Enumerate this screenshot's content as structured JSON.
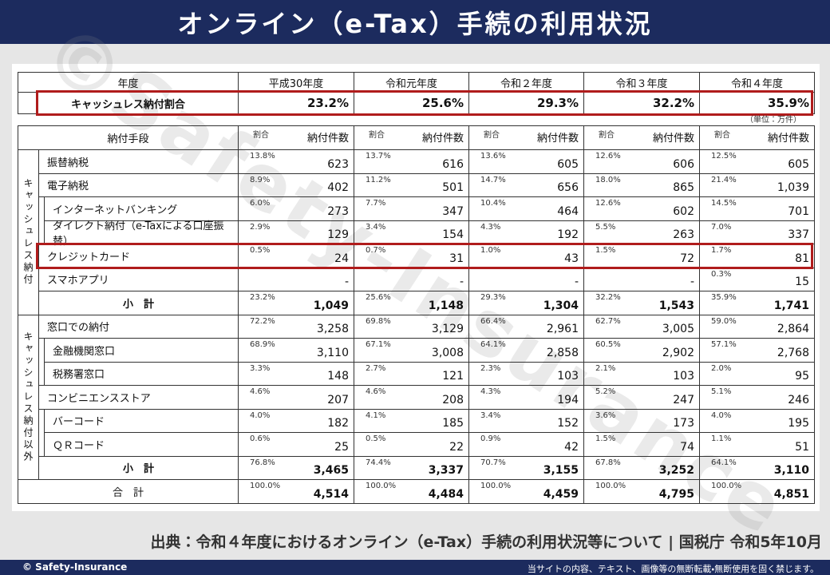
{
  "header": {
    "title": "オンライン（e-Tax）手続の利用状況"
  },
  "watermark": "©Safety-Insurance",
  "table1": {
    "header": [
      "年度",
      "平成30年度",
      "令和元年度",
      "令和２年度",
      "令和３年度",
      "令和４年度"
    ],
    "row": [
      "キャッシュレス納付割合",
      "23.2%",
      "25.6%",
      "29.3%",
      "32.2%",
      "35.9%"
    ]
  },
  "unit": "（単位：万件）",
  "table2": {
    "header": {
      "method": "納付手段",
      "share": "割合",
      "count": "納付件数"
    },
    "groups": [
      {
        "label": "キャッシュレス納付",
        "rows": [
          {
            "label": "振替納税",
            "cells": [
              {
                "share": "13.8%",
                "count": "623"
              },
              {
                "share": "13.7%",
                "count": "616"
              },
              {
                "share": "13.6%",
                "count": "605"
              },
              {
                "share": "12.6%",
                "count": "606"
              },
              {
                "share": "12.5%",
                "count": "605"
              }
            ]
          },
          {
            "label": "電子納税",
            "cells": [
              {
                "share": "8.9%",
                "count": "402"
              },
              {
                "share": "11.2%",
                "count": "501"
              },
              {
                "share": "14.7%",
                "count": "656"
              },
              {
                "share": "18.0%",
                "count": "865"
              },
              {
                "share": "21.4%",
                "count": "1,039"
              }
            ]
          },
          {
            "label": "インターネットバンキング",
            "cells": [
              {
                "share": "6.0%",
                "count": "273"
              },
              {
                "share": "7.7%",
                "count": "347"
              },
              {
                "share": "10.4%",
                "count": "464"
              },
              {
                "share": "12.6%",
                "count": "602"
              },
              {
                "share": "14.5%",
                "count": "701"
              }
            ]
          },
          {
            "label": "ダイレクト納付（e-Taxによる口座振替）",
            "cells": [
              {
                "share": "2.9%",
                "count": "129"
              },
              {
                "share": "3.4%",
                "count": "154"
              },
              {
                "share": "4.3%",
                "count": "192"
              },
              {
                "share": "5.5%",
                "count": "263"
              },
              {
                "share": "7.0%",
                "count": "337"
              }
            ]
          },
          {
            "label": "クレジットカード",
            "cells": [
              {
                "share": "0.5%",
                "count": "24"
              },
              {
                "share": "0.7%",
                "count": "31"
              },
              {
                "share": "1.0%",
                "count": "43"
              },
              {
                "share": "1.5%",
                "count": "72"
              },
              {
                "share": "1.7%",
                "count": "81"
              }
            ]
          },
          {
            "label": "スマホアプリ",
            "cells": [
              {
                "share": null,
                "count": "-"
              },
              {
                "share": null,
                "count": "-"
              },
              {
                "share": null,
                "count": "-"
              },
              {
                "share": null,
                "count": "-"
              },
              {
                "share": "0.3%",
                "count": "15"
              }
            ]
          },
          {
            "label": "小　計",
            "cells": [
              {
                "share": "23.2%",
                "count": "1,049"
              },
              {
                "share": "25.6%",
                "count": "1,148"
              },
              {
                "share": "29.3%",
                "count": "1,304"
              },
              {
                "share": "32.2%",
                "count": "1,543"
              },
              {
                "share": "35.9%",
                "count": "1,741"
              }
            ]
          }
        ]
      },
      {
        "label": "キャッシュレス納付以外",
        "rows": [
          {
            "label": "窓口での納付",
            "cells": [
              {
                "share": "72.2%",
                "count": "3,258"
              },
              {
                "share": "69.8%",
                "count": "3,129"
              },
              {
                "share": "66.4%",
                "count": "2,961"
              },
              {
                "share": "62.7%",
                "count": "3,005"
              },
              {
                "share": "59.0%",
                "count": "2,864"
              }
            ]
          },
          {
            "label": "金融機関窓口",
            "cells": [
              {
                "share": "68.9%",
                "count": "3,110"
              },
              {
                "share": "67.1%",
                "count": "3,008"
              },
              {
                "share": "64.1%",
                "count": "2,858"
              },
              {
                "share": "60.5%",
                "count": "2,902"
              },
              {
                "share": "57.1%",
                "count": "2,768"
              }
            ]
          },
          {
            "label": "税務署窓口",
            "cells": [
              {
                "share": "3.3%",
                "count": "148"
              },
              {
                "share": "2.7%",
                "count": "121"
              },
              {
                "share": "2.3%",
                "count": "103"
              },
              {
                "share": "2.1%",
                "count": "103"
              },
              {
                "share": "2.0%",
                "count": "95"
              }
            ]
          },
          {
            "label": "コンビニエンスストア",
            "cells": [
              {
                "share": "4.6%",
                "count": "207"
              },
              {
                "share": "4.6%",
                "count": "208"
              },
              {
                "share": "4.3%",
                "count": "194"
              },
              {
                "share": "5.2%",
                "count": "247"
              },
              {
                "share": "5.1%",
                "count": "246"
              }
            ]
          },
          {
            "label": "バーコード",
            "cells": [
              {
                "share": "4.0%",
                "count": "182"
              },
              {
                "share": "4.1%",
                "count": "185"
              },
              {
                "share": "3.4%",
                "count": "152"
              },
              {
                "share": "3.6%",
                "count": "173"
              },
              {
                "share": "4.0%",
                "count": "195"
              }
            ]
          },
          {
            "label": "ＱＲコード",
            "cells": [
              {
                "share": "0.6%",
                "count": "25"
              },
              {
                "share": "0.5%",
                "count": "22"
              },
              {
                "share": "0.9%",
                "count": "42"
              },
              {
                "share": "1.5%",
                "count": "74"
              },
              {
                "share": "1.1%",
                "count": "51"
              }
            ]
          },
          {
            "label": "小　計",
            "cells": [
              {
                "share": "76.8%",
                "count": "3,465"
              },
              {
                "share": "74.4%",
                "count": "3,337"
              },
              {
                "share": "70.7%",
                "count": "3,155"
              },
              {
                "share": "67.8%",
                "count": "3,252"
              },
              {
                "share": "64.1%",
                "count": "3,110"
              }
            ]
          }
        ]
      }
    ],
    "total": {
      "label": "合　計",
      "cells": [
        {
          "share": "100.0%",
          "count": "4,514"
        },
        {
          "share": "100.0%",
          "count": "4,484"
        },
        {
          "share": "100.0%",
          "count": "4,459"
        },
        {
          "share": "100.0%",
          "count": "4,795"
        },
        {
          "share": "100.0%",
          "count": "4,851"
        }
      ]
    }
  },
  "source": "出典：令和４年度におけるオンライン（e-Tax）手続の利用状況等について | 国税庁 令和5年10月",
  "footer": {
    "copyright": "© Safety-Insurance",
    "notice": "当サイトの内容、テキスト、画像等の無断転載・無断使用を固く禁じます。"
  }
}
